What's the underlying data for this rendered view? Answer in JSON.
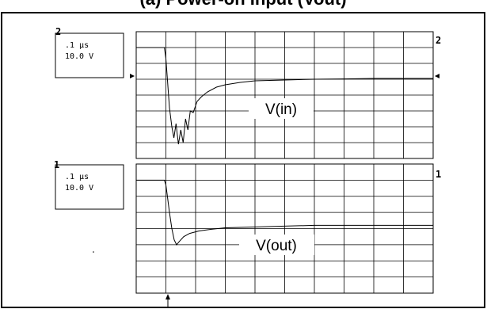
{
  "page": {
    "title": "(a) Power-on Input (Vout)"
  },
  "chart_data": [
    {
      "type": "line",
      "name": "channel-2",
      "channel_marker": "2",
      "right_marker": "2",
      "timebase": ".1 µs",
      "volts_per_div": "10.0 V",
      "trace_label": "V(in)",
      "x_unit": "div",
      "y_unit": "div",
      "xlim": [
        0,
        10
      ],
      "ylim": [
        0,
        8
      ],
      "grid": true,
      "series": [
        {
          "values_x": [
            0,
            0.45,
            0.95,
            1.0,
            1.05,
            1.12,
            1.2,
            1.27,
            1.34,
            1.42,
            1.5,
            1.58,
            1.66,
            1.74,
            1.82,
            1.92,
            2.05,
            2.2,
            2.4,
            2.7,
            3.0,
            3.5,
            4.0,
            5.0,
            6.0,
            7.0,
            8.0,
            9.0,
            10.0
          ],
          "values_y": [
            7.0,
            7.0,
            7.0,
            6.3,
            5.0,
            3.2,
            2.0,
            1.3,
            2.2,
            0.9,
            1.8,
            1.0,
            2.5,
            1.8,
            3.0,
            2.9,
            3.6,
            3.9,
            4.2,
            4.5,
            4.65,
            4.8,
            4.9,
            4.95,
            5.0,
            5.02,
            5.05,
            5.05,
            5.05
          ]
        }
      ]
    },
    {
      "type": "line",
      "name": "channel-1",
      "channel_marker": "1",
      "right_marker": "1",
      "timebase": ".1 µs",
      "volts_per_div": "10.0 V",
      "trace_label": "V(out)",
      "x_unit": "div",
      "y_unit": "div",
      "xlim": [
        0,
        10
      ],
      "ylim": [
        0,
        8
      ],
      "grid": true,
      "series": [
        {
          "values_x": [
            0,
            0.45,
            0.95,
            1.0,
            1.05,
            1.12,
            1.2,
            1.28,
            1.36,
            1.45,
            1.6,
            1.8,
            2.1,
            2.5,
            3.0,
            4.0,
            5.0,
            6.0,
            7.0,
            8.0,
            9.0,
            10.0
          ],
          "values_y": [
            7.0,
            7.0,
            7.0,
            6.7,
            6.0,
            5.0,
            4.0,
            3.3,
            3.0,
            3.2,
            3.5,
            3.7,
            3.85,
            3.95,
            4.05,
            4.1,
            4.15,
            4.2,
            4.2,
            4.2,
            4.2,
            4.2
          ]
        }
      ]
    }
  ],
  "colors": {
    "trace": "#000000",
    "grid": "#000000",
    "background": "#ffffff"
  }
}
